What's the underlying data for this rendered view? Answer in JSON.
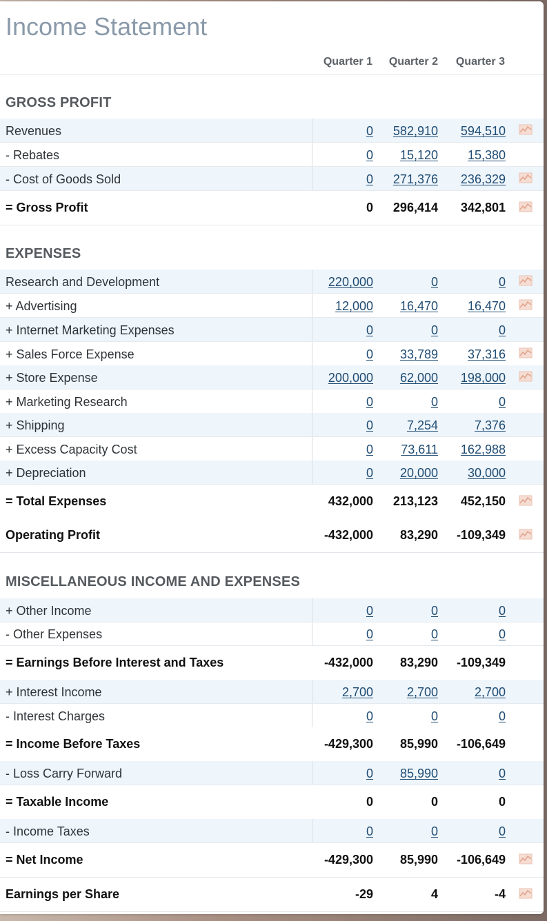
{
  "title": "Income Statement",
  "quarters": [
    "Quarter 1",
    "Quarter 2",
    "Quarter 3"
  ],
  "sections": {
    "gross_profit": "GROSS PROFIT",
    "expenses": "EXPENSES",
    "misc": "MISCELLANEOUS INCOME AND EXPENSES"
  },
  "rows": [
    {
      "label": "Revenues",
      "values": [
        "0",
        "582,910",
        "594,510"
      ],
      "kind": "input",
      "chart": true
    },
    {
      "label": "- Rebates",
      "values": [
        "0",
        "15,120",
        "15,380"
      ],
      "kind": "input",
      "chart": false
    },
    {
      "label": "- Cost of Goods Sold",
      "values": [
        "0",
        "271,376",
        "236,329"
      ],
      "kind": "input",
      "chart": true
    },
    {
      "label": "= Gross Profit",
      "values": [
        "0",
        "296,414",
        "342,801"
      ],
      "kind": "total",
      "chart": true
    },
    {
      "label": "Research and Development",
      "values": [
        "220,000",
        "0",
        "0"
      ],
      "kind": "input",
      "chart": true
    },
    {
      "label": "+ Advertising",
      "values": [
        "12,000",
        "16,470",
        "16,470"
      ],
      "kind": "input",
      "chart": true
    },
    {
      "label": "+ Internet Marketing Expenses",
      "values": [
        "0",
        "0",
        "0"
      ],
      "kind": "input",
      "chart": false
    },
    {
      "label": "+ Sales Force Expense",
      "values": [
        "0",
        "33,789",
        "37,316"
      ],
      "kind": "input",
      "chart": true
    },
    {
      "label": "+ Store Expense",
      "values": [
        "200,000",
        "62,000",
        "198,000"
      ],
      "kind": "input",
      "chart": true
    },
    {
      "label": "+ Marketing Research",
      "values": [
        "0",
        "0",
        "0"
      ],
      "kind": "input",
      "chart": false
    },
    {
      "label": "+ Shipping",
      "values": [
        "0",
        "7,254",
        "7,376"
      ],
      "kind": "input",
      "chart": false
    },
    {
      "label": "+ Excess Capacity Cost",
      "values": [
        "0",
        "73,611",
        "162,988"
      ],
      "kind": "input",
      "chart": false
    },
    {
      "label": "+ Depreciation",
      "values": [
        "0",
        "20,000",
        "30,000"
      ],
      "kind": "input",
      "chart": false
    },
    {
      "label": "= Total Expenses",
      "values": [
        "432,000",
        "213,123",
        "452,150"
      ],
      "kind": "total",
      "chart": true
    },
    {
      "label": "Operating Profit",
      "values": [
        "-432,000",
        "83,290",
        "-109,349"
      ],
      "kind": "total",
      "chart": true
    },
    {
      "label": "+ Other Income",
      "values": [
        "0",
        "0",
        "0"
      ],
      "kind": "input",
      "chart": false
    },
    {
      "label": "- Other Expenses",
      "values": [
        "0",
        "0",
        "0"
      ],
      "kind": "input",
      "chart": false
    },
    {
      "label": "= Earnings Before Interest and Taxes",
      "values": [
        "-432,000",
        "83,290",
        "-109,349"
      ],
      "kind": "total",
      "chart": false
    },
    {
      "label": "+ Interest Income",
      "values": [
        "2,700",
        "2,700",
        "2,700"
      ],
      "kind": "input",
      "chart": false
    },
    {
      "label": "- Interest Charges",
      "values": [
        "0",
        "0",
        "0"
      ],
      "kind": "input",
      "chart": false
    },
    {
      "label": "= Income Before Taxes",
      "values": [
        "-429,300",
        "85,990",
        "-106,649"
      ],
      "kind": "total",
      "chart": false
    },
    {
      "label": "- Loss Carry Forward",
      "values": [
        "0",
        "85,990",
        "0"
      ],
      "kind": "input",
      "chart": false
    },
    {
      "label": "= Taxable Income",
      "values": [
        "0",
        "0",
        "0"
      ],
      "kind": "total",
      "chart": false
    },
    {
      "label": "- Income Taxes",
      "values": [
        "0",
        "0",
        "0"
      ],
      "kind": "input",
      "chart": false
    },
    {
      "label": "= Net Income",
      "values": [
        "-429,300",
        "85,990",
        "-106,649"
      ],
      "kind": "total",
      "chart": true
    },
    {
      "label": "Earnings per Share",
      "values": [
        "-29",
        "4",
        "-4"
      ],
      "kind": "total",
      "chart": true
    }
  ],
  "icons": {
    "chart": "trend-chart-icon"
  },
  "colors": {
    "title": "#8a9aaa",
    "link": "#1f4c73",
    "alt_row": "#eef5fb",
    "chart_icon": "#e2a58f"
  }
}
